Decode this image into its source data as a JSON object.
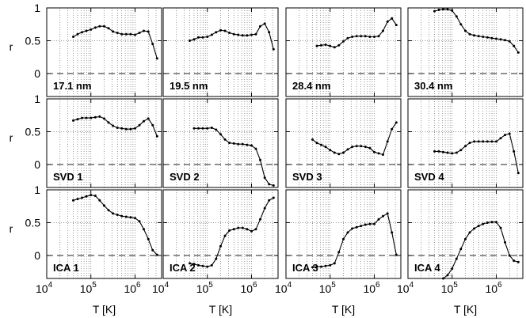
{
  "chart_data": {
    "type": "line",
    "layout": "3x4 small multiples",
    "xlabel": "T [K]",
    "ylabel": "r",
    "xscale": "log",
    "xlim": [
      10000,
      4000000
    ],
    "ylim": [
      -0.35,
      1.0
    ],
    "x_ticks": [
      {
        "base": "10",
        "exp": "4"
      },
      {
        "base": "10",
        "exp": "5"
      },
      {
        "base": "10",
        "exp": "6"
      }
    ],
    "y_ticks": [
      "1",
      "0.5",
      "0"
    ],
    "grid": "dotted vertical log grid, dotted y=0.5",
    "reference_line": {
      "y": 0,
      "style": "dashed"
    },
    "series_color": "#000000",
    "x": [
      40000,
      50000,
      63000,
      79000,
      100000,
      126000,
      158000,
      200000,
      251000,
      316000,
      398000,
      501000,
      631000,
      794000,
      1000000,
      1260000,
      1580000,
      2000000,
      2510000,
      3160000
    ],
    "panels": [
      {
        "label": "17.1 nm",
        "values": [
          0.56,
          0.6,
          0.63,
          0.65,
          0.67,
          0.7,
          0.72,
          0.72,
          0.69,
          0.64,
          0.62,
          0.6,
          0.6,
          0.6,
          0.59,
          0.62,
          0.65,
          0.64,
          0.45,
          0.23
        ]
      },
      {
        "label": "19.5 nm",
        "values": [
          0.5,
          0.52,
          0.55,
          0.55,
          0.56,
          0.59,
          0.63,
          0.66,
          0.65,
          0.62,
          0.6,
          0.59,
          0.58,
          0.58,
          0.59,
          0.6,
          0.72,
          0.76,
          0.63,
          0.37
        ]
      },
      {
        "label": "28.4 nm",
        "values": [
          null,
          0.42,
          0.43,
          0.44,
          0.42,
          0.4,
          0.43,
          0.49,
          0.54,
          0.56,
          0.57,
          0.57,
          0.57,
          0.56,
          0.56,
          0.57,
          0.65,
          0.79,
          0.84,
          0.74
        ]
      },
      {
        "label": "30.4 nm",
        "values": [
          0.95,
          0.97,
          0.98,
          0.98,
          0.96,
          0.87,
          0.75,
          0.65,
          0.6,
          0.58,
          0.57,
          0.56,
          0.55,
          0.54,
          0.53,
          0.52,
          0.51,
          0.49,
          0.42,
          0.32
        ]
      },
      {
        "label": "SVD 1",
        "values": [
          0.67,
          0.69,
          0.71,
          0.71,
          0.71,
          0.72,
          0.73,
          0.7,
          0.64,
          0.59,
          0.56,
          0.55,
          0.54,
          0.54,
          0.55,
          0.6,
          0.66,
          0.7,
          0.6,
          0.43
        ]
      },
      {
        "label": "SVD 2",
        "values": [
          null,
          0.55,
          0.55,
          0.55,
          0.55,
          0.56,
          0.53,
          0.46,
          0.38,
          0.33,
          0.32,
          0.31,
          0.31,
          0.3,
          0.29,
          0.24,
          0.07,
          -0.2,
          -0.3,
          -0.32
        ]
      },
      {
        "label": "SVD 3",
        "values": [
          0.38,
          0.33,
          0.3,
          0.27,
          0.22,
          0.18,
          0.16,
          0.18,
          0.23,
          0.27,
          0.28,
          0.28,
          0.27,
          0.25,
          0.19,
          0.17,
          0.15,
          0.35,
          0.54,
          0.64
        ]
      },
      {
        "label": "SVD 4",
        "values": [
          0.2,
          0.2,
          0.19,
          0.18,
          0.17,
          0.18,
          0.22,
          0.28,
          0.33,
          0.35,
          0.35,
          0.35,
          0.35,
          0.35,
          0.35,
          0.4,
          0.45,
          0.47,
          0.2,
          -0.13
        ]
      },
      {
        "label": "ICA 1",
        "values": [
          0.84,
          0.86,
          0.88,
          0.9,
          0.92,
          0.91,
          0.84,
          0.76,
          0.69,
          0.64,
          0.62,
          0.6,
          0.59,
          0.58,
          0.57,
          0.52,
          0.4,
          0.25,
          0.08,
          0.01
        ]
      },
      {
        "label": "ICA 2",
        "values": [
          -0.12,
          -0.13,
          -0.15,
          -0.16,
          -0.17,
          -0.15,
          -0.05,
          0.14,
          0.3,
          0.38,
          0.4,
          0.42,
          0.42,
          0.4,
          0.37,
          0.4,
          0.55,
          0.72,
          0.84,
          0.88
        ]
      },
      {
        "label": "ICA 3",
        "values": [
          -0.18,
          -0.17,
          -0.17,
          -0.16,
          -0.15,
          -0.12,
          0.05,
          0.25,
          0.35,
          0.41,
          0.43,
          0.45,
          0.47,
          0.48,
          0.48,
          0.55,
          0.6,
          0.64,
          0.35,
          0.01
        ]
      },
      {
        "label": "ICA 4",
        "values": [
          null,
          null,
          -0.35,
          -0.3,
          -0.2,
          -0.05,
          0.1,
          0.25,
          0.35,
          0.41,
          0.45,
          0.48,
          0.5,
          0.51,
          0.51,
          0.42,
          0.2,
          0.0,
          -0.08,
          -0.1
        ]
      }
    ]
  }
}
